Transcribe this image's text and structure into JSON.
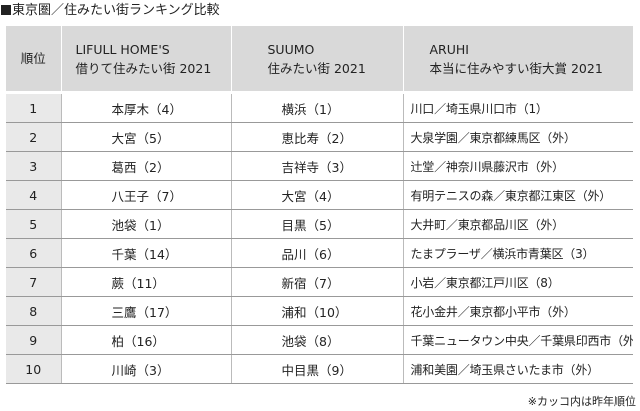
{
  "title": "東京圏／住みたい街ランキング比較",
  "header": {
    "rank": "順位",
    "col1_line1": "LIFULL HOME'S",
    "col1_line2": "借りて住みたい街 2021",
    "col2_line1": "SUUMO",
    "col2_line2": "住みたい街 2021",
    "col3_line1": "ARUHI",
    "col3_line2": "本当に住みやすい街大賞 2021"
  },
  "rows": [
    {
      "rank": "1",
      "lifull": "本厚木（4）",
      "suumo": "横浜（1）",
      "aruhi": "川口／埼玉県川口市（1）"
    },
    {
      "rank": "2",
      "lifull": "大宮（5）",
      "suumo": "恵比寿（2）",
      "aruhi": "大泉学園／東京都練馬区（外）"
    },
    {
      "rank": "3",
      "lifull": "葛西（2）",
      "suumo": "吉祥寺（3）",
      "aruhi": "辻堂／神奈川県藤沢市（外）"
    },
    {
      "rank": "4",
      "lifull": "八王子（7）",
      "suumo": "大宮（4）",
      "aruhi": "有明テニスの森／東京都江東区（外）"
    },
    {
      "rank": "5",
      "lifull": "池袋（1）",
      "suumo": "目黒（5）",
      "aruhi": "大井町／東京都品川区（外）"
    },
    {
      "rank": "6",
      "lifull": "千葉（14）",
      "suumo": "品川（6）",
      "aruhi": "たまプラーザ／横浜市青葉区（3）"
    },
    {
      "rank": "7",
      "lifull": "蕨（11）",
      "suumo": "新宿（7）",
      "aruhi": "小岩／東京都江戸川区（8）"
    },
    {
      "rank": "8",
      "lifull": "三鷹（17）",
      "suumo": "浦和（10）",
      "aruhi": "花小金井／東京都小平市（外）"
    },
    {
      "rank": "9",
      "lifull": "柏（16）",
      "suumo": "池袋（8）",
      "aruhi": "千葉ニュータウン中央／千葉県印西市（外）"
    },
    {
      "rank": "10",
      "lifull": "川崎（3）",
      "suumo": "中目黒（9）",
      "aruhi": "浦和美園／埼玉県さいたま市（外）"
    }
  ],
  "note": "※カッコ内は昨年順位"
}
